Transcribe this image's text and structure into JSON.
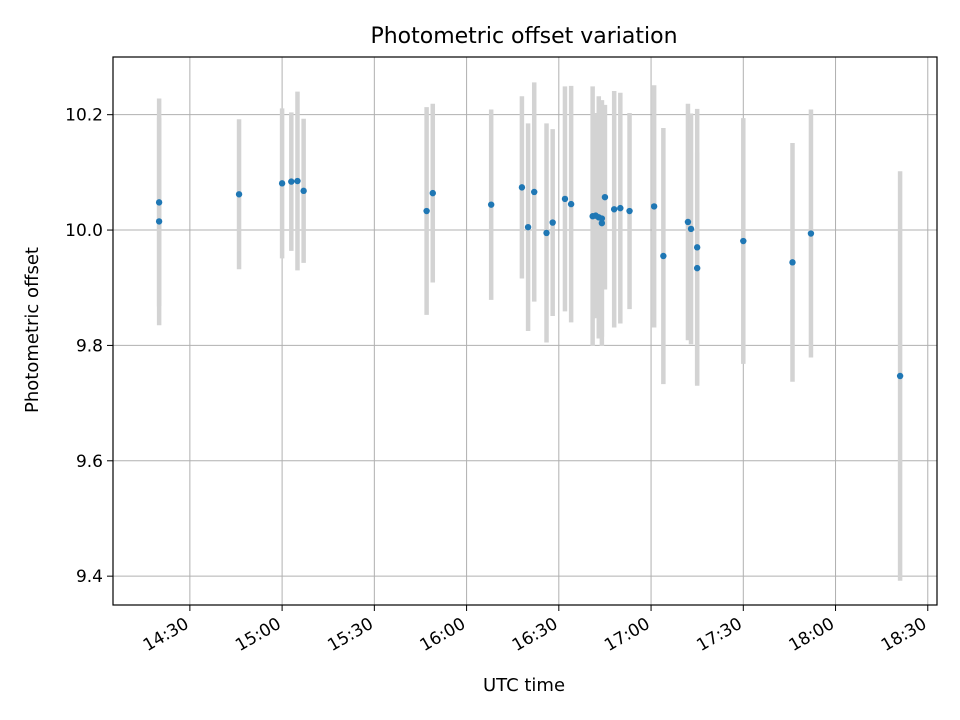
{
  "chart_data": {
    "type": "scatter",
    "title": "Photometric offset variation",
    "xlabel": "UTC time",
    "ylabel": "Photometric offset",
    "x_unit": "UTC HH:MM",
    "xlim": [
      "14:05",
      "18:33"
    ],
    "ylim": [
      9.35,
      10.3
    ],
    "x_ticks": [
      "14:30",
      "15:00",
      "15:30",
      "16:00",
      "16:30",
      "17:00",
      "17:30",
      "18:00",
      "18:30"
    ],
    "y_ticks": [
      "9.4",
      "9.6",
      "9.8",
      "10.0",
      "10.2"
    ],
    "grid": true,
    "legend": false,
    "colors": {
      "points": "#1f77b4",
      "errorbars": "#d3d3d3",
      "grid": "#b0b0b0"
    },
    "points": [
      {
        "time": "14:20",
        "y": 10.015,
        "err": 0.18
      },
      {
        "time": "14:20",
        "y": 10.048,
        "err": 0.18
      },
      {
        "time": "14:46",
        "y": 10.062,
        "err": 0.13
      },
      {
        "time": "15:00",
        "y": 10.081,
        "err": 0.13
      },
      {
        "time": "15:03",
        "y": 10.084,
        "err": 0.12
      },
      {
        "time": "15:05",
        "y": 10.085,
        "err": 0.155
      },
      {
        "time": "15:07",
        "y": 10.068,
        "err": 0.125
      },
      {
        "time": "15:47",
        "y": 10.033,
        "err": 0.18
      },
      {
        "time": "15:49",
        "y": 10.064,
        "err": 0.155
      },
      {
        "time": "16:08",
        "y": 10.044,
        "err": 0.165
      },
      {
        "time": "16:18",
        "y": 10.074,
        "err": 0.158
      },
      {
        "time": "16:20",
        "y": 10.005,
        "err": 0.18
      },
      {
        "time": "16:22",
        "y": 10.066,
        "err": 0.19
      },
      {
        "time": "16:26",
        "y": 9.995,
        "err": 0.19
      },
      {
        "time": "16:28",
        "y": 10.013,
        "err": 0.162
      },
      {
        "time": "16:32",
        "y": 10.054,
        "err": 0.195
      },
      {
        "time": "16:34",
        "y": 10.045,
        "err": 0.205
      },
      {
        "time": "16:41",
        "y": 10.024,
        "err": 0.225
      },
      {
        "time": "16:42",
        "y": 10.025,
        "err": 0.178
      },
      {
        "time": "16:43",
        "y": 10.022,
        "err": 0.21
      },
      {
        "time": "16:44",
        "y": 10.012,
        "err": 0.213
      },
      {
        "time": "16:44",
        "y": 10.02,
        "err": 0.205
      },
      {
        "time": "16:45",
        "y": 10.057,
        "err": 0.16
      },
      {
        "time": "16:48",
        "y": 10.036,
        "err": 0.205
      },
      {
        "time": "16:50",
        "y": 10.038,
        "err": 0.2
      },
      {
        "time": "16:53",
        "y": 10.033,
        "err": 0.17
      },
      {
        "time": "17:01",
        "y": 10.041,
        "err": 0.21
      },
      {
        "time": "17:04",
        "y": 9.955,
        "err": 0.222
      },
      {
        "time": "17:12",
        "y": 10.014,
        "err": 0.205
      },
      {
        "time": "17:13",
        "y": 10.002,
        "err": 0.2
      },
      {
        "time": "17:15",
        "y": 9.97,
        "err": 0.24
      },
      {
        "time": "17:15",
        "y": 9.934,
        "err": 0.2
      },
      {
        "time": "17:30",
        "y": 9.981,
        "err": 0.213
      },
      {
        "time": "17:46",
        "y": 9.944,
        "err": 0.207
      },
      {
        "time": "17:52",
        "y": 9.994,
        "err": 0.215
      },
      {
        "time": "18:21",
        "y": 9.747,
        "err": 0.355
      }
    ]
  }
}
